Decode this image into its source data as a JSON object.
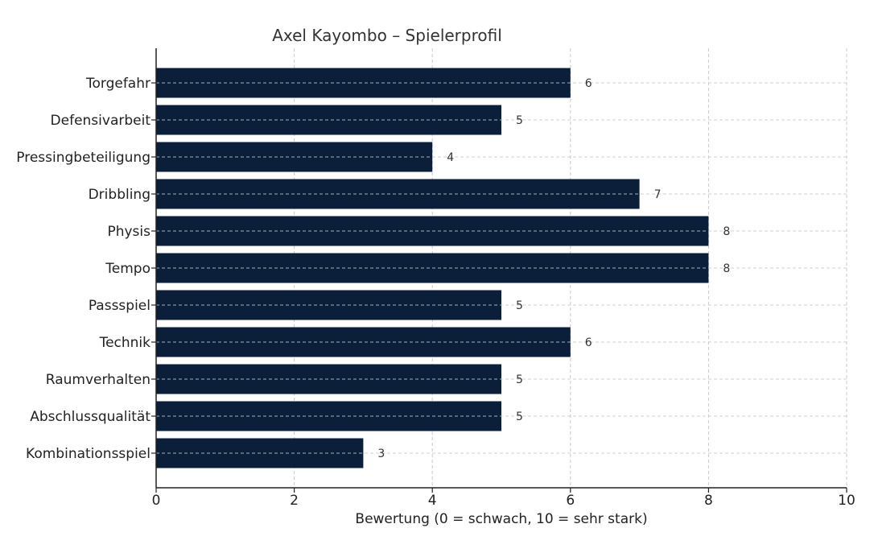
{
  "chart_data": {
    "type": "bar",
    "orientation": "horizontal",
    "title": "Axel Kayombo – Spielerprofil",
    "xlabel": "Bewertung (0 = schwach, 10 = sehr stark)",
    "ylabel": "",
    "xlim": [
      0,
      10
    ],
    "x_ticks": [
      0,
      2,
      4,
      6,
      8,
      10
    ],
    "grid": true,
    "grid_style": "dashed",
    "bar_color": "#0b1f3a",
    "categories": [
      "Torgefahr",
      "Defensivarbeit",
      "Pressingbeteiligung",
      "Dribbling",
      "Physis",
      "Tempo",
      "Passspiel",
      "Technik",
      "Raumverhalten",
      "Abschlussqualität",
      "Kombinationsspiel"
    ],
    "values": [
      6,
      5,
      4,
      7,
      8,
      8,
      5,
      6,
      5,
      5,
      3
    ],
    "data_labels": [
      "6",
      "5",
      "4",
      "7",
      "8",
      "8",
      "5",
      "6",
      "5",
      "5",
      "3"
    ]
  }
}
